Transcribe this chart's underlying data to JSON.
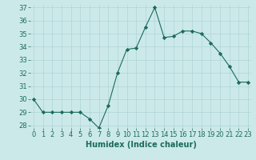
{
  "x": [
    0,
    1,
    2,
    3,
    4,
    5,
    6,
    7,
    8,
    9,
    10,
    11,
    12,
    13,
    14,
    15,
    16,
    17,
    18,
    19,
    20,
    21,
    22,
    23
  ],
  "y": [
    30.0,
    29.0,
    29.0,
    29.0,
    29.0,
    29.0,
    28.5,
    27.8,
    29.5,
    32.0,
    33.8,
    33.9,
    35.5,
    37.0,
    34.7,
    34.8,
    35.2,
    35.2,
    35.0,
    34.3,
    33.5,
    32.5,
    31.3,
    31.3
  ],
  "line_color": "#1a6b5a",
  "marker": "D",
  "marker_size": 2.2,
  "bg_color": "#cce9ea",
  "grid_color": "#b0d4d5",
  "xlabel": "Humidex (Indice chaleur)",
  "ylim_min": 28,
  "ylim_max": 37,
  "xlim_min": 0,
  "xlim_max": 23,
  "yticks": [
    28,
    29,
    30,
    31,
    32,
    33,
    34,
    35,
    36,
    37
  ],
  "xticks": [
    0,
    1,
    2,
    3,
    4,
    5,
    6,
    7,
    8,
    9,
    10,
    11,
    12,
    13,
    14,
    15,
    16,
    17,
    18,
    19,
    20,
    21,
    22,
    23
  ],
  "tick_color": "#1a6b5a",
  "label_fontsize": 7.0,
  "tick_fontsize": 6.0,
  "line_width": 0.8
}
